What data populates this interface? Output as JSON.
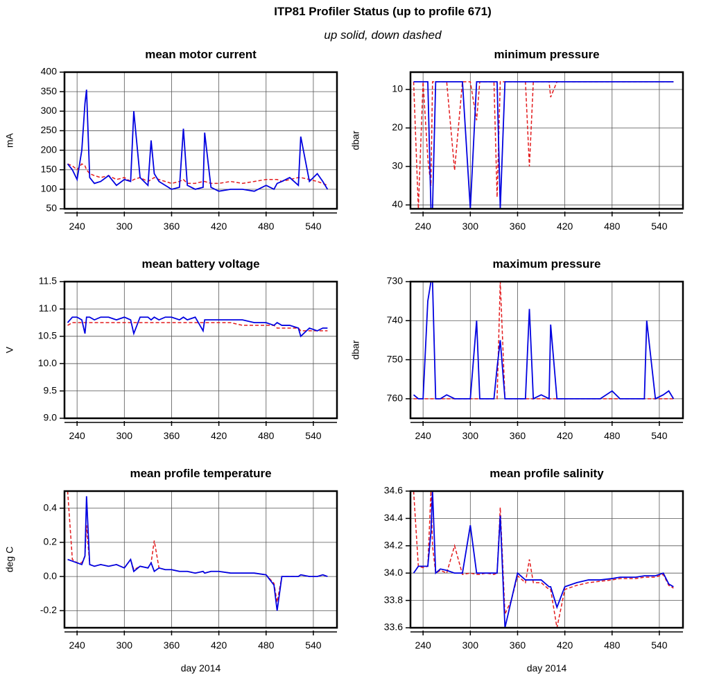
{
  "title": "ITP81 Profiler Status (up to profile 671)",
  "subtitle": "up solid, down dashed",
  "chart_data": [
    {
      "type": "line",
      "title": "mean motor current",
      "ylabel": "mA",
      "x": [
        228,
        234,
        240,
        246,
        250,
        252,
        256,
        262,
        270,
        280,
        290,
        300,
        308,
        312,
        320,
        330,
        334,
        338,
        344,
        352,
        360,
        370,
        375,
        380,
        390,
        400,
        402,
        410,
        420,
        435,
        450,
        465,
        480,
        490,
        494,
        500,
        510,
        521,
        524,
        535,
        545,
        552,
        558
      ],
      "series": [
        {
          "color": "#e31a1c",
          "dashed": true,
          "values": [
            165,
            160,
            150,
            165,
            160,
            150,
            140,
            135,
            130,
            135,
            125,
            130,
            120,
            125,
            130,
            120,
            125,
            130,
            125,
            120,
            115,
            120,
            125,
            115,
            115,
            120,
            120,
            115,
            115,
            120,
            115,
            120,
            125,
            125,
            125,
            120,
            125,
            130,
            130,
            125,
            120,
            115,
            110
          ]
        },
        {
          "color": "#0000e0",
          "dashed": false,
          "values": [
            165,
            150,
            125,
            200,
            320,
            355,
            130,
            115,
            120,
            135,
            110,
            125,
            120,
            300,
            130,
            110,
            225,
            140,
            120,
            110,
            100,
            105,
            255,
            110,
            100,
            105,
            245,
            105,
            95,
            100,
            100,
            95,
            110,
            100,
            115,
            120,
            130,
            110,
            235,
            120,
            140,
            120,
            100
          ]
        }
      ],
      "xlim": [
        224,
        570
      ],
      "ylim": [
        50,
        400
      ],
      "xticks": [
        240,
        300,
        360,
        420,
        480,
        540
      ],
      "yticks": [
        50,
        100,
        150,
        200,
        250,
        300,
        350,
        400
      ],
      "grid": true,
      "y_inverted": false
    },
    {
      "type": "line",
      "title": "minimum pressure",
      "ylabel": "dbar",
      "x": [
        228,
        234,
        240,
        246,
        250,
        252,
        256,
        262,
        270,
        280,
        290,
        300,
        308,
        312,
        320,
        330,
        334,
        338,
        344,
        352,
        360,
        370,
        375,
        380,
        390,
        400,
        402,
        410,
        420,
        435,
        450,
        465,
        480,
        490,
        494,
        500,
        510,
        521,
        524,
        535,
        545,
        552,
        558
      ],
      "series": [
        {
          "color": "#e31a1c",
          "dashed": true,
          "values": [
            8,
            41,
            8,
            28,
            35,
            8,
            8,
            8,
            8,
            31,
            8,
            8,
            18,
            8,
            8,
            8,
            38,
            8,
            8,
            8,
            8,
            8,
            30,
            8,
            8,
            8,
            12,
            8,
            8,
            8,
            8,
            8,
            8,
            8,
            8,
            8,
            8,
            8,
            8,
            8,
            8,
            8,
            8
          ]
        },
        {
          "color": "#0000e0",
          "dashed": false,
          "values": [
            8,
            8,
            8,
            8,
            41,
            41,
            8,
            8,
            8,
            8,
            8,
            41,
            8,
            8,
            8,
            8,
            8,
            41,
            8,
            8,
            8,
            8,
            8,
            8,
            8,
            8,
            8,
            8,
            8,
            8,
            8,
            8,
            8,
            8,
            8,
            8,
            8,
            8,
            8,
            8,
            8,
            8,
            8
          ]
        }
      ],
      "xlim": [
        224,
        570
      ],
      "ylim": [
        5.5,
        41
      ],
      "xticks": [
        240,
        300,
        360,
        420,
        480,
        540
      ],
      "yticks": [
        10,
        20,
        30,
        40
      ],
      "grid": true,
      "y_inverted": true
    },
    {
      "type": "line",
      "title": "mean battery voltage",
      "ylabel": "V",
      "x": [
        228,
        234,
        240,
        246,
        250,
        252,
        256,
        262,
        270,
        280,
        290,
        300,
        308,
        312,
        320,
        330,
        334,
        338,
        344,
        352,
        360,
        370,
        375,
        380,
        390,
        400,
        402,
        410,
        420,
        435,
        450,
        465,
        480,
        490,
        494,
        500,
        510,
        521,
        524,
        535,
        545,
        552,
        558
      ],
      "series": [
        {
          "color": "#e31a1c",
          "dashed": true,
          "values": [
            10.7,
            10.75,
            10.75,
            10.75,
            10.75,
            10.75,
            10.75,
            10.75,
            10.75,
            10.75,
            10.75,
            10.75,
            10.75,
            10.75,
            10.75,
            10.75,
            10.75,
            10.75,
            10.75,
            10.75,
            10.75,
            10.75,
            10.75,
            10.75,
            10.75,
            10.75,
            10.75,
            10.75,
            10.75,
            10.75,
            10.7,
            10.7,
            10.7,
            10.7,
            10.65,
            10.65,
            10.65,
            10.65,
            10.6,
            10.6,
            10.6,
            10.6,
            10.6
          ]
        },
        {
          "color": "#0000e0",
          "dashed": false,
          "values": [
            10.75,
            10.85,
            10.85,
            10.8,
            10.55,
            10.85,
            10.85,
            10.8,
            10.85,
            10.85,
            10.8,
            10.85,
            10.8,
            10.55,
            10.85,
            10.85,
            10.8,
            10.85,
            10.8,
            10.85,
            10.85,
            10.8,
            10.85,
            10.8,
            10.85,
            10.6,
            10.8,
            10.8,
            10.8,
            10.8,
            10.8,
            10.75,
            10.75,
            10.7,
            10.75,
            10.7,
            10.7,
            10.65,
            10.5,
            10.65,
            10.6,
            10.65,
            10.65
          ]
        }
      ],
      "xlim": [
        224,
        570
      ],
      "ylim": [
        9,
        11.5
      ],
      "xticks": [
        240,
        300,
        360,
        420,
        480,
        540
      ],
      "yticks": [
        {
          "value": 9,
          "label": "9.0"
        },
        9.5,
        {
          "value": 10,
          "label": "10.0"
        },
        10.5,
        {
          "value": 11,
          "label": "11.0"
        },
        11.5
      ],
      "grid": true,
      "y_inverted": false
    },
    {
      "type": "line",
      "title": "maximum pressure",
      "ylabel": "dbar",
      "x": [
        228,
        234,
        240,
        246,
        250,
        252,
        256,
        262,
        270,
        280,
        290,
        300,
        308,
        312,
        320,
        330,
        334,
        338,
        344,
        352,
        360,
        370,
        375,
        380,
        390,
        400,
        402,
        410,
        420,
        435,
        450,
        465,
        480,
        490,
        494,
        500,
        510,
        521,
        524,
        535,
        545,
        552,
        558
      ],
      "series": [
        {
          "color": "#e31a1c",
          "dashed": true,
          "values": [
            760,
            760,
            760,
            760,
            760,
            760,
            760,
            760,
            760,
            760,
            760,
            760,
            760,
            760,
            760,
            760,
            760,
            730,
            760,
            760,
            760,
            760,
            760,
            760,
            760,
            760,
            760,
            760,
            760,
            760,
            760,
            760,
            760,
            760,
            760,
            760,
            760,
            760,
            760,
            760,
            760,
            760,
            760
          ]
        },
        {
          "color": "#0000e0",
          "dashed": false,
          "values": [
            759,
            760,
            760,
            735,
            730,
            730,
            760,
            760,
            759,
            760,
            760,
            760,
            740,
            760,
            760,
            760,
            752,
            745,
            760,
            760,
            760,
            760,
            737,
            760,
            759,
            760,
            741,
            760,
            760,
            760,
            760,
            760,
            758,
            760,
            760,
            760,
            760,
            760,
            740,
            760,
            759,
            758,
            760
          ]
        }
      ],
      "xlim": [
        224,
        570
      ],
      "ylim": [
        730,
        765
      ],
      "xticks": [
        240,
        300,
        360,
        420,
        480,
        540
      ],
      "yticks": [
        730,
        740,
        750,
        760
      ],
      "grid": true,
      "y_inverted": true
    },
    {
      "type": "line",
      "title": "mean profile temperature",
      "ylabel": "deg C",
      "xlabel": "day 2014",
      "x": [
        228,
        234,
        240,
        246,
        250,
        252,
        256,
        262,
        270,
        280,
        290,
        300,
        308,
        312,
        320,
        330,
        334,
        338,
        344,
        352,
        360,
        370,
        375,
        380,
        390,
        400,
        402,
        410,
        420,
        435,
        450,
        465,
        480,
        490,
        494,
        500,
        510,
        521,
        524,
        535,
        545,
        552,
        558
      ],
      "series": [
        {
          "color": "#e31a1c",
          "dashed": true,
          "values": [
            0.5,
            0.1,
            0.08,
            0.08,
            0.12,
            0.3,
            0.07,
            0.06,
            0.07,
            0.06,
            0.07,
            0.05,
            0.1,
            0.04,
            0.06,
            0.05,
            0.08,
            0.21,
            0.05,
            0.04,
            0.04,
            0.03,
            0.03,
            0.03,
            0.02,
            0.03,
            0.02,
            0.03,
            0.03,
            0.02,
            0.02,
            0.02,
            0.01,
            -0.04,
            -0.15,
            0.0,
            0.0,
            0.0,
            0.01,
            0.0,
            0.0,
            0.01,
            0.0
          ]
        },
        {
          "color": "#0000e0",
          "dashed": false,
          "values": [
            0.1,
            0.09,
            0.08,
            0.07,
            0.12,
            0.47,
            0.07,
            0.06,
            0.07,
            0.06,
            0.07,
            0.05,
            0.1,
            0.03,
            0.06,
            0.05,
            0.08,
            0.03,
            0.05,
            0.04,
            0.04,
            0.03,
            0.03,
            0.03,
            0.02,
            0.03,
            0.02,
            0.03,
            0.03,
            0.02,
            0.02,
            0.02,
            0.01,
            -0.05,
            -0.2,
            0.0,
            0.0,
            0.0,
            0.01,
            0.0,
            0.0,
            0.01,
            0.0
          ]
        }
      ],
      "xlim": [
        224,
        570
      ],
      "ylim": [
        -0.3,
        0.5
      ],
      "xticks": [
        240,
        300,
        360,
        420,
        480,
        540
      ],
      "yticks": [
        -0.2,
        {
          "value": 0,
          "label": "0.0"
        },
        0.2,
        0.4
      ],
      "grid": true,
      "y_inverted": false
    },
    {
      "type": "line",
      "title": "mean profile salinity",
      "xlabel": "day 2014",
      "x": [
        228,
        234,
        240,
        246,
        250,
        252,
        256,
        262,
        270,
        280,
        290,
        300,
        308,
        312,
        320,
        330,
        334,
        338,
        344,
        352,
        360,
        370,
        375,
        380,
        390,
        400,
        402,
        410,
        420,
        435,
        450,
        465,
        480,
        490,
        494,
        500,
        510,
        521,
        524,
        535,
        545,
        552,
        558
      ],
      "series": [
        {
          "color": "#e31a1c",
          "dashed": true,
          "values": [
            34.6,
            34.05,
            34.04,
            34.05,
            34.6,
            34.2,
            34.0,
            34.02,
            34.0,
            34.2,
            33.99,
            34.0,
            33.99,
            33.99,
            34.0,
            33.99,
            34.0,
            34.48,
            33.7,
            33.8,
            33.98,
            33.93,
            34.1,
            33.93,
            33.93,
            33.88,
            33.88,
            33.6,
            33.88,
            33.91,
            33.93,
            33.94,
            33.95,
            33.96,
            33.96,
            33.96,
            33.96,
            33.97,
            33.97,
            33.97,
            33.99,
            33.91,
            33.89
          ]
        },
        {
          "color": "#0000e0",
          "dashed": false,
          "values": [
            34.0,
            34.05,
            34.05,
            34.05,
            34.3,
            34.6,
            34.0,
            34.03,
            34.02,
            34.0,
            34.0,
            34.35,
            34.0,
            34.0,
            34.0,
            34.0,
            34.0,
            34.42,
            33.6,
            33.8,
            34.0,
            33.95,
            33.95,
            33.95,
            33.95,
            33.9,
            33.9,
            33.75,
            33.9,
            33.93,
            33.95,
            33.95,
            33.96,
            33.97,
            33.97,
            33.97,
            33.97,
            33.98,
            33.98,
            33.98,
            34.0,
            33.92,
            33.9
          ]
        }
      ],
      "xlim": [
        224,
        570
      ],
      "ylim": [
        33.6,
        34.6
      ],
      "xticks": [
        240,
        300,
        360,
        420,
        480,
        540
      ],
      "yticks": [
        33.6,
        33.8,
        {
          "value": 34,
          "label": "34.0"
        },
        34.2,
        34.4,
        34.6
      ],
      "grid": true,
      "y_inverted": false
    }
  ]
}
